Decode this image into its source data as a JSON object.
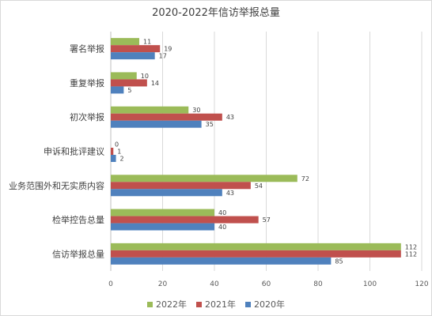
{
  "chart_data": {
    "type": "bar",
    "orientation": "horizontal",
    "title": "2020-2022年信访举报总量",
    "categories": [
      "署名举报",
      "重复举报",
      "初次举报",
      "申诉和批评建议",
      "业务范围外和无实质内容",
      "检举控告总量",
      "信访举报总量"
    ],
    "series": [
      {
        "name": "2022年",
        "color": "#9bbb59",
        "values": [
          11,
          10,
          30,
          0,
          72,
          40,
          112
        ]
      },
      {
        "name": "2021年",
        "color": "#c0504d",
        "values": [
          19,
          14,
          43,
          1,
          54,
          57,
          112
        ]
      },
      {
        "name": "2020年",
        "color": "#4f81bd",
        "values": [
          17,
          5,
          35,
          2,
          43,
          40,
          85
        ]
      }
    ],
    "xlim": [
      0,
      120
    ],
    "xticks": [
      0,
      20,
      40,
      60,
      80,
      100,
      120
    ],
    "grid": true,
    "legend_position": "bottom",
    "data_labels": true
  }
}
